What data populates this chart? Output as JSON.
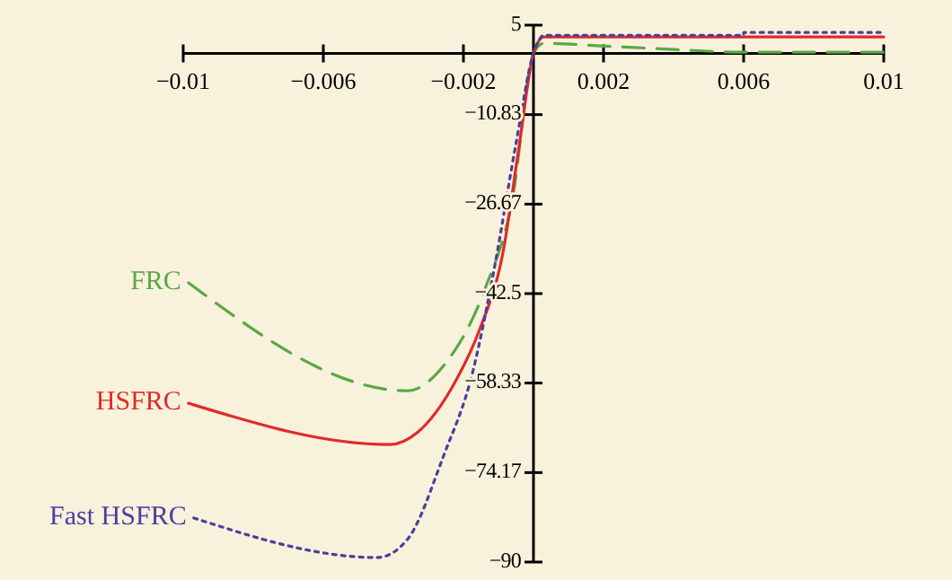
{
  "chart_data": {
    "type": "line",
    "legend": false,
    "grid": false,
    "xlim": [
      -0.01,
      0.01
    ],
    "xticks": [
      -0.01,
      -0.006,
      -0.002,
      0.002,
      0.006,
      0.01
    ],
    "ylim": [
      -90,
      5
    ],
    "yticks": [
      5,
      -10.83,
      -26.67,
      -42.5,
      -58.33,
      -74.17,
      -90
    ],
    "series": [
      {
        "name": "FRC",
        "color": "#5aa845",
        "line_style": "dashed",
        "x": [
          -0.00985,
          -0.0036,
          -0.00256,
          -0.00138,
          -0.0006,
          0,
          0.0003,
          0.002,
          0.004,
          0.006,
          0.01
        ],
        "values": [
          -40.6,
          -59.7,
          -55.2,
          -41.6,
          -25.7,
          0,
          1.8,
          1.3,
          0.7,
          0.2,
          0.2
        ]
      },
      {
        "name": "HSFRC",
        "color": "#e02a2a",
        "line_style": "solid",
        "x": [
          -0.00985,
          -0.0041,
          -0.0033,
          -0.00226,
          -0.00154,
          -0.00087,
          -0.0004,
          0,
          0.0003,
          0.01
        ],
        "values": [
          -61.9,
          -69.2,
          -67,
          -58.4,
          -48.9,
          -35.2,
          -16,
          0,
          2.9,
          2.9
        ]
      },
      {
        "name": "Fast HSFRC",
        "color": "#4a3fa0",
        "line_style": "dotted",
        "x": [
          -0.0097,
          -0.00446,
          -0.0036,
          -0.00256,
          -0.00174,
          -0.00113,
          -0.0005,
          0,
          0.0003,
          0.006,
          0.006,
          0.01
        ],
        "values": [
          -82.2,
          -89.2,
          -86,
          -71.1,
          -56.5,
          -38.4,
          -16,
          0,
          3.2,
          3.2,
          3.7,
          3.7
        ]
      }
    ]
  }
}
